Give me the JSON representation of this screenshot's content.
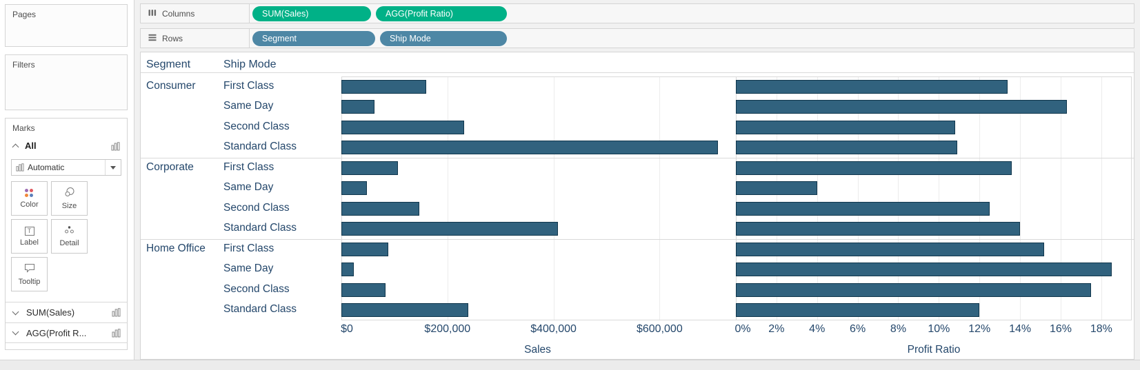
{
  "sidebar": {
    "pages_label": "Pages",
    "filters_label": "Filters",
    "marks_label": "Marks",
    "marks_card": {
      "all_label": "All",
      "mark_type_selected": "Automatic",
      "buttons": [
        {
          "label": "Color"
        },
        {
          "label": "Size"
        },
        {
          "label": "Label"
        },
        {
          "label": "Detail"
        },
        {
          "label": "Tooltip"
        }
      ]
    },
    "field_rows": [
      {
        "label": "SUM(Sales)"
      },
      {
        "label": "AGG(Profit R..."
      }
    ]
  },
  "shelves": {
    "columns": {
      "label": "Columns",
      "pills": [
        {
          "label": "SUM(Sales)",
          "type": "measure"
        },
        {
          "label": "AGG(Profit Ratio)",
          "type": "measure"
        }
      ]
    },
    "rows": {
      "label": "Rows",
      "pills": [
        {
          "label": "Segment",
          "type": "dimension"
        },
        {
          "label": "Ship Mode",
          "type": "dimension"
        }
      ]
    }
  },
  "colors": {
    "measure_pill": "#00b187",
    "dimension_pill": "#4e87a5",
    "bar_fill": "#31627e",
    "bar_border": "#10364c",
    "chart_text": "#24476b"
  },
  "chart_data": {
    "type": "bar",
    "orientation": "horizontal",
    "row_header_labels": [
      "Segment",
      "Ship Mode"
    ],
    "groups": [
      {
        "segment": "Consumer",
        "rows": [
          {
            "ship_mode": "First Class",
            "sales": 160000,
            "profit_ratio": 13.4
          },
          {
            "ship_mode": "Same Day",
            "sales": 62000,
            "profit_ratio": 16.3
          },
          {
            "ship_mode": "Second Class",
            "sales": 232000,
            "profit_ratio": 10.8
          },
          {
            "ship_mode": "Standard Class",
            "sales": 710000,
            "profit_ratio": 10.9
          }
        ]
      },
      {
        "segment": "Corporate",
        "rows": [
          {
            "ship_mode": "First Class",
            "sales": 107000,
            "profit_ratio": 13.6
          },
          {
            "ship_mode": "Same Day",
            "sales": 48000,
            "profit_ratio": 4.0
          },
          {
            "ship_mode": "Second Class",
            "sales": 147000,
            "profit_ratio": 12.5
          },
          {
            "ship_mode": "Standard Class",
            "sales": 409000,
            "profit_ratio": 14.0
          }
        ]
      },
      {
        "segment": "Home Office",
        "rows": [
          {
            "ship_mode": "First Class",
            "sales": 88000,
            "profit_ratio": 15.2
          },
          {
            "ship_mode": "Same Day",
            "sales": 24000,
            "profit_ratio": 18.5
          },
          {
            "ship_mode": "Second Class",
            "sales": 83000,
            "profit_ratio": 17.5
          },
          {
            "ship_mode": "Standard Class",
            "sales": 239000,
            "profit_ratio": 12.0
          }
        ]
      }
    ],
    "sales_axis": {
      "title": "Sales",
      "max": 740000,
      "ticks": [
        {
          "label": "$0",
          "value": 0
        },
        {
          "label": "$200,000",
          "value": 200000
        },
        {
          "label": "$400,000",
          "value": 400000
        },
        {
          "label": "$600,000",
          "value": 600000
        }
      ]
    },
    "profit_axis": {
      "title": "Profit Ratio",
      "max": 19.5,
      "ticks": [
        {
          "label": "0%",
          "value": 0
        },
        {
          "label": "2%",
          "value": 2
        },
        {
          "label": "4%",
          "value": 4
        },
        {
          "label": "6%",
          "value": 6
        },
        {
          "label": "8%",
          "value": 8
        },
        {
          "label": "10%",
          "value": 10
        },
        {
          "label": "12%",
          "value": 12
        },
        {
          "label": "14%",
          "value": 14
        },
        {
          "label": "16%",
          "value": 16
        },
        {
          "label": "18%",
          "value": 18
        }
      ]
    }
  }
}
